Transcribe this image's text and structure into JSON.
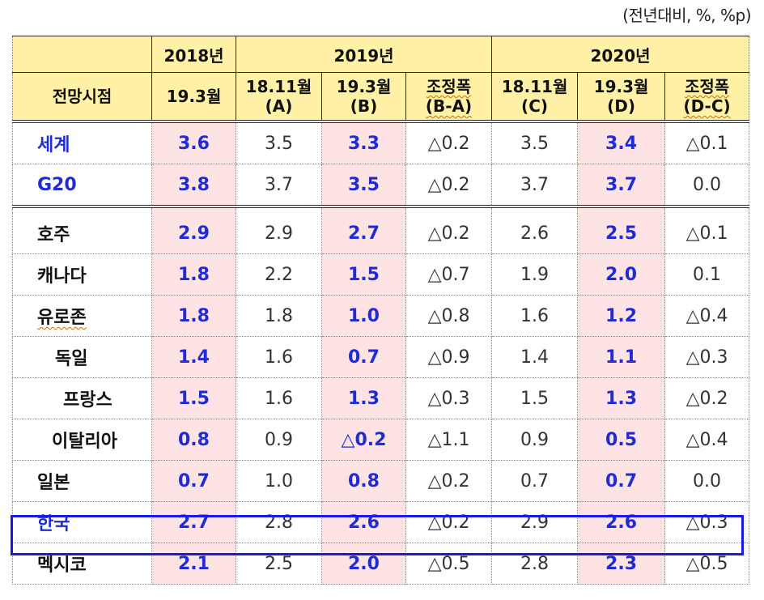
{
  "unit_note": "(전년대비, %, %p)",
  "header": {
    "col_2018": "2018년",
    "col_2019": "2019년",
    "col_2020": "2020년",
    "outlook_label": "전망시점",
    "sub": {
      "c2018": "19.3월",
      "c2019a_l1": "18.11월",
      "c2019a_l2": "(A)",
      "c2019b_l1": "19.3월",
      "c2019b_l2": "(B)",
      "c2019d_l1": "조정폭",
      "c2019d_l2": "(B-A)",
      "c2020c_l1": "18.11월",
      "c2020c_l2": "(C)",
      "c2020d_l1": "19.3월",
      "c2020d_l2": "(D)",
      "c2020e_l1": "조정폭",
      "c2020e_l2": "(D-C)"
    }
  },
  "rows": [
    {
      "name": "세계",
      "v2018": "3.6",
      "a": "3.5",
      "b": "3.3",
      "ba": "△0.2",
      "c": "3.5",
      "d": "3.4",
      "dc": "△0.1"
    },
    {
      "name": "G20",
      "v2018": "3.8",
      "a": "3.7",
      "b": "3.5",
      "ba": "△0.2",
      "c": "3.7",
      "d": "3.7",
      "dc": "0.0"
    },
    {
      "name": "호주",
      "v2018": "2.9",
      "a": "2.9",
      "b": "2.7",
      "ba": "△0.2",
      "c": "2.6",
      "d": "2.5",
      "dc": "△0.1"
    },
    {
      "name": "캐나다",
      "v2018": "1.8",
      "a": "2.2",
      "b": "1.5",
      "ba": "△0.7",
      "c": "1.9",
      "d": "2.0",
      "dc": "0.1"
    },
    {
      "name": "유로존",
      "v2018": "1.8",
      "a": "1.8",
      "b": "1.0",
      "ba": "△0.8",
      "c": "1.6",
      "d": "1.2",
      "dc": "△0.4"
    },
    {
      "name": "독일",
      "v2018": "1.4",
      "a": "1.6",
      "b": "0.7",
      "ba": "△0.9",
      "c": "1.4",
      "d": "1.1",
      "dc": "△0.3"
    },
    {
      "name": "프랑스",
      "v2018": "1.5",
      "a": "1.6",
      "b": "1.3",
      "ba": "△0.3",
      "c": "1.5",
      "d": "1.3",
      "dc": "△0.2"
    },
    {
      "name": "이탈리아",
      "v2018": "0.8",
      "a": "0.9",
      "b": "△0.2",
      "ba": "△1.1",
      "c": "0.9",
      "d": "0.5",
      "dc": "△0.4"
    },
    {
      "name": "일본",
      "v2018": "0.7",
      "a": "1.0",
      "b": "0.8",
      "ba": "△0.2",
      "c": "0.7",
      "d": "0.7",
      "dc": "0.0"
    },
    {
      "name": "한국",
      "v2018": "2.7",
      "a": "2.8",
      "b": "2.6",
      "ba": "△0.2",
      "c": "2.9",
      "d": "2.6",
      "dc": "△0.3"
    },
    {
      "name": "멕시코",
      "v2018": "2.1",
      "a": "2.5",
      "b": "2.0",
      "ba": "△0.5",
      "c": "2.8",
      "d": "2.3",
      "dc": "△0.5"
    }
  ],
  "colors": {
    "header_bg": "#fff2a6",
    "highlight_bg": "#fde3e3",
    "highlight_text": "#1e2bd6",
    "box_border": "#1a1ae0"
  }
}
